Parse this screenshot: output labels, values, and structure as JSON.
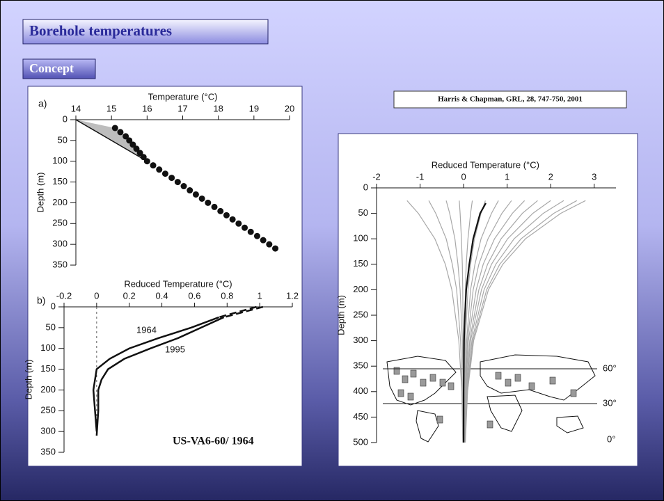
{
  "slide": {
    "title": "Borehole temperatures",
    "subtitle": "Concept",
    "citation": "Harris & Chapman, GRL, 28, 747-750, 2001"
  },
  "chart_data": [
    {
      "type": "scatter",
      "panel_label": "a)",
      "xlabel": "Temperature (°C)",
      "ylabel": "Depth (m)",
      "xlim": [
        14,
        20
      ],
      "xticks": [
        14,
        15,
        16,
        17,
        18,
        19,
        20
      ],
      "ylim": [
        0,
        350
      ],
      "yticks": [
        0,
        50,
        100,
        150,
        200,
        250,
        300,
        350
      ],
      "y_inverted": true,
      "x_axis_position": "top",
      "points": {
        "color": "#111111",
        "x": [
          15.1,
          15.25,
          15.4,
          15.5,
          15.6,
          15.7,
          15.8,
          15.9,
          16.0,
          16.17,
          16.34,
          16.51,
          16.69,
          16.86,
          17.03,
          17.2,
          17.37,
          17.54,
          17.71,
          17.89,
          18.06,
          18.23,
          18.4,
          18.57,
          18.74,
          18.91,
          19.09,
          19.26,
          19.43,
          19.6
        ],
        "y": [
          20,
          30,
          40,
          50,
          60,
          70,
          80,
          90,
          100,
          110,
          120,
          130,
          140,
          150,
          160,
          170,
          180,
          190,
          200,
          210,
          220,
          230,
          240,
          250,
          260,
          270,
          280,
          290,
          300,
          310
        ]
      },
      "extrapolation": {
        "color": "#111111",
        "x": [
          14,
          16
        ],
        "y": [
          0,
          100
        ]
      },
      "shade_color": "#bdbdbd"
    },
    {
      "type": "line",
      "panel_label": "b)",
      "xlabel": "Reduced Temperature (°C)",
      "ylabel": "Depth (m)",
      "xlim": [
        -0.2,
        1.2
      ],
      "xticks": [
        -0.2,
        0,
        0.2,
        0.4,
        0.6,
        0.8,
        1,
        1.2
      ],
      "ylim": [
        0,
        350
      ],
      "yticks": [
        0,
        50,
        100,
        150,
        200,
        250,
        300,
        350
      ],
      "y_inverted": true,
      "x_axis_position": "top",
      "dashed_segments": 1,
      "reference_line_x": 0,
      "series": [
        {
          "name": "1964",
          "color": "#111111",
          "x": [
            0.98,
            0.75,
            0.58,
            0.38,
            0.2,
            0.08,
            0.0,
            -0.01,
            -0.02,
            -0.01,
            0.0
          ],
          "y": [
            0,
            25,
            50,
            75,
            100,
            125,
            150,
            175,
            200,
            250,
            300
          ]
        },
        {
          "name": "1995",
          "color": "#111111",
          "x": [
            1.02,
            0.78,
            0.64,
            0.5,
            0.33,
            0.17,
            0.07,
            0.03,
            0.01,
            0.01,
            0.0
          ],
          "y": [
            0,
            25,
            50,
            75,
            100,
            125,
            150,
            175,
            200,
            250,
            310
          ]
        }
      ],
      "annotation": "US-VA6-60/ 1964"
    },
    {
      "type": "profiles",
      "xlabel": "Reduced Temperature (°C)",
      "ylabel": "Depth (m)",
      "xlim": [
        -2,
        3.5
      ],
      "xticks": [
        -2,
        -1,
        0,
        1,
        2,
        3
      ],
      "ylim": [
        0,
        500
      ],
      "yticks": [
        0,
        50,
        100,
        150,
        200,
        250,
        300,
        350,
        400,
        450,
        500
      ],
      "y_inverted": true,
      "x_axis_position": "top",
      "profile_color": "#a8a8a8",
      "depths": [
        25,
        50,
        100,
        150,
        200,
        300,
        400,
        500
      ],
      "profiles": [
        [
          -1.3,
          -1.04,
          -0.66,
          -0.42,
          -0.27,
          -0.11,
          -0.04,
          -0.02
        ],
        [
          -0.8,
          -0.64,
          -0.4,
          -0.26,
          -0.16,
          -0.07,
          -0.03,
          -0.01
        ],
        [
          -0.4,
          -0.32,
          -0.2,
          -0.13,
          -0.08,
          -0.03,
          -0.01,
          -0.01
        ],
        [
          -0.1,
          -0.08,
          -0.05,
          -0.03,
          -0.02,
          -0.01,
          0,
          0
        ],
        [
          0.2,
          0.16,
          0.1,
          0.06,
          0.04,
          0.02,
          0.01,
          0
        ],
        [
          0.5,
          0.4,
          0.25,
          0.16,
          0.1,
          0.04,
          0.02,
          0.01
        ],
        [
          0.8,
          0.64,
          0.4,
          0.26,
          0.16,
          0.07,
          0.03,
          0.01
        ],
        [
          1.1,
          0.88,
          0.56,
          0.35,
          0.22,
          0.09,
          0.04,
          0.01
        ],
        [
          1.4,
          1.12,
          0.71,
          0.45,
          0.29,
          0.11,
          0.05,
          0.02
        ],
        [
          1.7,
          1.35,
          0.86,
          0.55,
          0.35,
          0.14,
          0.06,
          0.02
        ],
        [
          2.0,
          1.59,
          1.01,
          0.64,
          0.41,
          0.16,
          0.07,
          0.03
        ],
        [
          2.3,
          1.83,
          1.16,
          0.74,
          0.47,
          0.19,
          0.08,
          0.03
        ],
        [
          2.6,
          2.07,
          1.32,
          0.83,
          0.53,
          0.21,
          0.09,
          0.03
        ],
        [
          2.8,
          2.23,
          1.42,
          0.9,
          0.57,
          0.23,
          0.09,
          0.04
        ]
      ],
      "mean": {
        "color": "#111111",
        "x": [
          0.51,
          0.38,
          0.22,
          0.13,
          0.06,
          0.03,
          0.01,
          0,
          0
        ],
        "y": [
          30,
          50,
          100,
          150,
          200,
          250,
          300,
          400,
          500
        ]
      },
      "map_labels": [
        "60°",
        "30°",
        "0°"
      ]
    }
  ]
}
